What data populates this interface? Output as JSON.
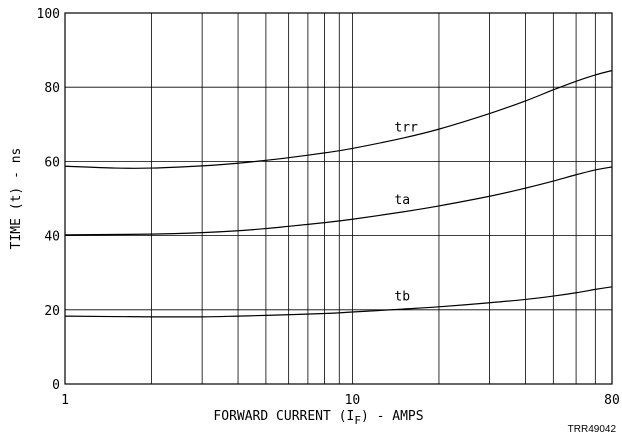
{
  "chart_data": {
    "type": "line",
    "x_scale": "log",
    "y_scale": "linear",
    "xlim": [
      1,
      80
    ],
    "ylim": [
      0,
      100
    ],
    "grid": true,
    "xlabel": "FORWARD CURRENT (I",
    "xlabel_sub": "F",
    "xlabel_tail": ") - AMPS",
    "ylabel": "TIME (t) - ns",
    "x_tick_labels": [
      {
        "value": 1,
        "label": "1"
      },
      {
        "value": 10,
        "label": "10"
      },
      {
        "value": 80,
        "label": "80"
      }
    ],
    "y_tick_labels": [
      {
        "value": 0,
        "label": "0"
      },
      {
        "value": 20,
        "label": "20"
      },
      {
        "value": 40,
        "label": "40"
      },
      {
        "value": 60,
        "label": "60"
      },
      {
        "value": 80,
        "label": "80"
      },
      {
        "value": 100,
        "label": "100"
      }
    ],
    "x_gridlines": [
      1,
      2,
      3,
      4,
      5,
      6,
      7,
      8,
      9,
      10,
      20,
      30,
      40,
      50,
      60,
      70,
      80
    ],
    "y_gridlines": [
      0,
      20,
      40,
      60,
      80,
      100
    ],
    "series": [
      {
        "name": "trr",
        "label_at": {
          "x": 14,
          "y": 68
        },
        "x": [
          1,
          1.5,
          2,
          3,
          4,
          5,
          6,
          8,
          10,
          15,
          20,
          30,
          40,
          50,
          60,
          70,
          80
        ],
        "y": [
          58.7,
          58.2,
          58.2,
          58.8,
          59.5,
          60.3,
          61.0,
          62.3,
          63.5,
          66.3,
          68.7,
          72.9,
          76.3,
          79.3,
          81.6,
          83.3,
          84.5
        ]
      },
      {
        "name": "ta",
        "label_at": {
          "x": 14,
          "y": 48.5
        },
        "x": [
          1,
          2,
          3,
          4,
          5,
          6,
          8,
          10,
          15,
          20,
          30,
          40,
          50,
          60,
          70,
          80
        ],
        "y": [
          40.2,
          40.4,
          40.8,
          41.3,
          41.9,
          42.5,
          43.5,
          44.4,
          46.4,
          48.0,
          50.6,
          52.8,
          54.7,
          56.4,
          57.7,
          58.5
        ]
      },
      {
        "name": "tb",
        "label_at": {
          "x": 14,
          "y": 22.5
        },
        "x": [
          1,
          2,
          3,
          4,
          5,
          8,
          10,
          15,
          20,
          30,
          40,
          50,
          60,
          70,
          80
        ],
        "y": [
          18.3,
          18.1,
          18.1,
          18.3,
          18.5,
          19.0,
          19.4,
          20.2,
          20.8,
          21.9,
          22.8,
          23.7,
          24.6,
          25.5,
          26.2
        ]
      }
    ]
  },
  "figure_code": "TRR49042"
}
